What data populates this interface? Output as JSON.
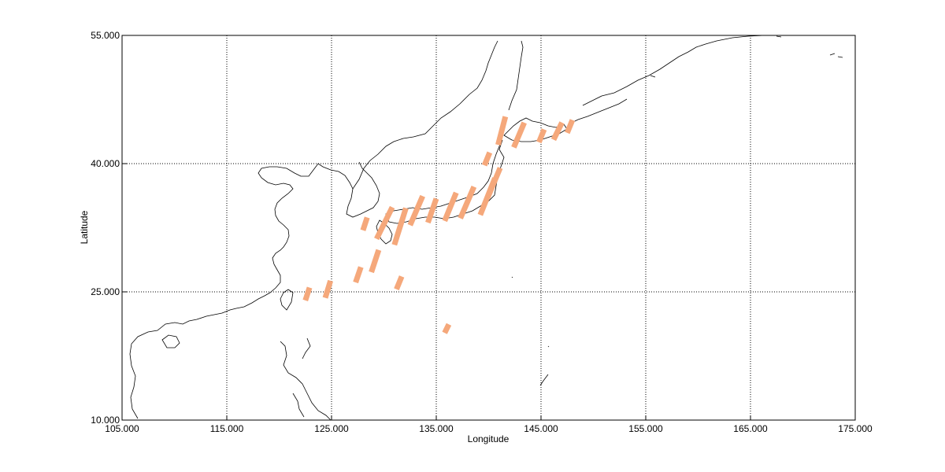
{
  "chart_data": {
    "type": "map",
    "xlabel": "Longitude",
    "ylabel": "Latitude",
    "xlim": [
      105,
      175
    ],
    "ylim": [
      10,
      55
    ],
    "x_ticks": [
      "105.000",
      "115.000",
      "125.000",
      "135.000",
      "145.000",
      "155.000",
      "165.000",
      "175.000"
    ],
    "y_ticks": [
      "10.000",
      "25.000",
      "40.000",
      "55.000"
    ],
    "x_tick_values": [
      105,
      115,
      125,
      135,
      145,
      155,
      165,
      175
    ],
    "y_tick_values": [
      10,
      25,
      40,
      55
    ],
    "grid": true,
    "swath_color": "#f5a87b",
    "swaths": [
      {
        "lon1": 122.5,
        "lat1": 24.0,
        "lon2": 122.9,
        "lat2": 25.5
      },
      {
        "lon1": 124.4,
        "lat1": 24.3,
        "lon2": 124.9,
        "lat2": 26.3
      },
      {
        "lon1": 127.3,
        "lat1": 26.1,
        "lon2": 127.8,
        "lat2": 27.9
      },
      {
        "lon1": 128.0,
        "lat1": 32.2,
        "lon2": 128.4,
        "lat2": 33.7
      },
      {
        "lon1": 128.8,
        "lat1": 27.3,
        "lon2": 129.5,
        "lat2": 29.9
      },
      {
        "lon1": 129.3,
        "lat1": 31.2,
        "lon2": 130.8,
        "lat2": 34.9
      },
      {
        "lon1": 131.0,
        "lat1": 30.5,
        "lon2": 132.1,
        "lat2": 34.8
      },
      {
        "lon1": 131.2,
        "lat1": 25.3,
        "lon2": 131.7,
        "lat2": 26.8
      },
      {
        "lon1": 132.5,
        "lat1": 32.8,
        "lon2": 133.7,
        "lat2": 36.2
      },
      {
        "lon1": 134.2,
        "lat1": 33.1,
        "lon2": 135.0,
        "lat2": 35.9
      },
      {
        "lon1": 135.8,
        "lat1": 20.2,
        "lon2": 136.2,
        "lat2": 21.2
      },
      {
        "lon1": 135.8,
        "lat1": 33.3,
        "lon2": 136.9,
        "lat2": 36.6
      },
      {
        "lon1": 137.3,
        "lat1": 33.6,
        "lon2": 138.6,
        "lat2": 37.3
      },
      {
        "lon1": 139.2,
        "lat1": 34.0,
        "lon2": 140.6,
        "lat2": 38.3
      },
      {
        "lon1": 139.9,
        "lat1": 36.0,
        "lon2": 141.1,
        "lat2": 39.5
      },
      {
        "lon1": 139.6,
        "lat1": 39.8,
        "lon2": 140.1,
        "lat2": 41.3
      },
      {
        "lon1": 140.9,
        "lat1": 42.2,
        "lon2": 141.6,
        "lat2": 45.5
      },
      {
        "lon1": 142.4,
        "lat1": 41.9,
        "lon2": 143.4,
        "lat2": 44.8
      },
      {
        "lon1": 144.8,
        "lat1": 42.5,
        "lon2": 145.3,
        "lat2": 44.0
      },
      {
        "lon1": 146.2,
        "lat1": 42.8,
        "lon2": 147.0,
        "lat2": 44.8
      },
      {
        "lon1": 147.5,
        "lat1": 43.6,
        "lon2": 148.0,
        "lat2": 45.1
      }
    ]
  }
}
